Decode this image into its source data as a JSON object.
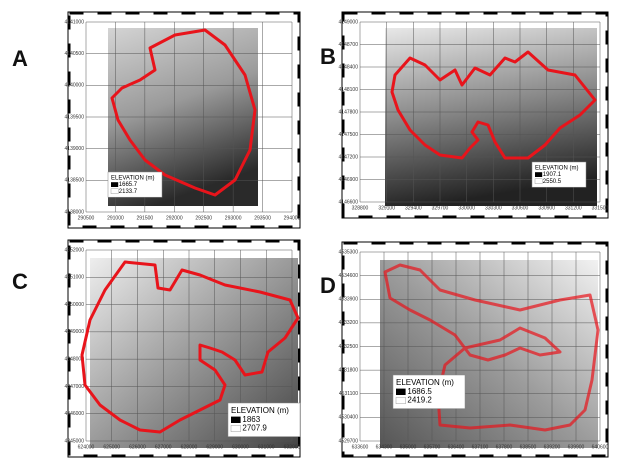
{
  "panels": [
    {
      "label": "A",
      "yticks": [
        4141000,
        4140500,
        4140000,
        4139500,
        4139000,
        4138500,
        4138000
      ],
      "xticks": [
        290500,
        291000,
        291500,
        292000,
        292500,
        293000,
        293500,
        294000
      ],
      "legend": {
        "title": "ELEVATION (m)",
        "low": 1665.7,
        "high": 2133.7
      }
    },
    {
      "label": "B",
      "yticks": [
        4149000,
        4148700,
        4148400,
        4148100,
        4147800,
        4147500,
        4147200,
        4146900,
        4146600
      ],
      "xticks": [
        328800,
        329100,
        329400,
        329700,
        330000,
        330300,
        330600,
        330900,
        331200,
        331500
      ],
      "legend": {
        "title": "ELEVATION (m)",
        "low": 1907.1,
        "high": 2550.5
      }
    },
    {
      "label": "C",
      "yticks": [
        4352000,
        4351000,
        4350000,
        4349000,
        4348000,
        4347000,
        4346000,
        4345000
      ],
      "xticks": [
        624000,
        625000,
        626000,
        627000,
        628000,
        629000,
        630000,
        631000,
        632000
      ],
      "legend": {
        "title": "ELEVATION (m)",
        "low": 1863,
        "high": 2707.9
      }
    },
    {
      "label": "D",
      "yticks": [
        4535300,
        4534600,
        4533900,
        4533200,
        4532500,
        4531800,
        4531100,
        4530400,
        4529700
      ],
      "xticks": [
        633600,
        634300,
        635000,
        635700,
        636400,
        637100,
        637800,
        638500,
        639200,
        639900,
        640600
      ],
      "legend": {
        "title": "ELEVATION (m)",
        "low": 1686.5,
        "high": 2419.2
      }
    }
  ]
}
